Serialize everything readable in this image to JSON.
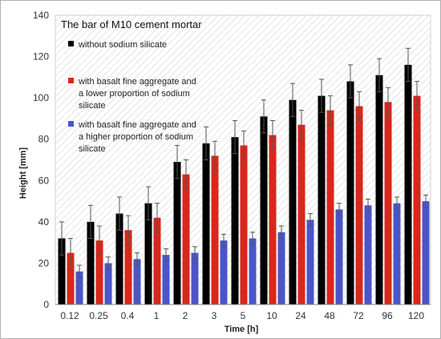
{
  "chart_data": {
    "type": "bar",
    "title": "The bar of M10 cement mortar",
    "xlabel": "Time [h]",
    "ylabel": "Height [mm]",
    "ylim": [
      0,
      140
    ],
    "yticks": [
      0,
      20,
      40,
      60,
      80,
      100,
      120,
      140
    ],
    "categories": [
      "0.12",
      "0.25",
      "0.4",
      "1",
      "2",
      "3",
      "5",
      "10",
      "24",
      "48",
      "72",
      "96",
      "120"
    ],
    "grid": false,
    "legend_position": "top-left",
    "error_bars": true,
    "series": [
      {
        "name": "without sodium silicate",
        "color": "#000000",
        "values": [
          32,
          40,
          44,
          49,
          69,
          78,
          81,
          91,
          99,
          101,
          108,
          111,
          116
        ],
        "errors": [
          8,
          8,
          8,
          8,
          8,
          8,
          8,
          8,
          8,
          8,
          8,
          8,
          8
        ]
      },
      {
        "name": "with basalt fine aggregate and a lower proportion of sodium silicate",
        "color": "#d9271c",
        "values": [
          25,
          31,
          36,
          42,
          63,
          72,
          77,
          82,
          87,
          94,
          96,
          98,
          101
        ],
        "errors": [
          7,
          7,
          7,
          7,
          7,
          7,
          7,
          7,
          7,
          7,
          7,
          7,
          7
        ]
      },
      {
        "name": "with basalt fine aggregate and a higher proportion of sodium silicate",
        "color": "#4a56c8",
        "values": [
          16,
          20,
          22,
          24,
          25,
          31,
          32,
          35,
          41,
          46,
          48,
          49,
          50
        ],
        "errors": [
          3,
          3,
          3,
          3,
          3,
          3,
          3,
          3,
          3,
          3,
          3,
          3,
          3
        ]
      }
    ]
  },
  "legend_lines": [
    [
      "without sodium silicate"
    ],
    [
      "with basalt fine aggregate and",
      "a lower proportion of sodium",
      "silicate"
    ],
    [
      "with basalt fine aggregate and",
      "a higher proportion of sodium",
      "silicate"
    ]
  ]
}
